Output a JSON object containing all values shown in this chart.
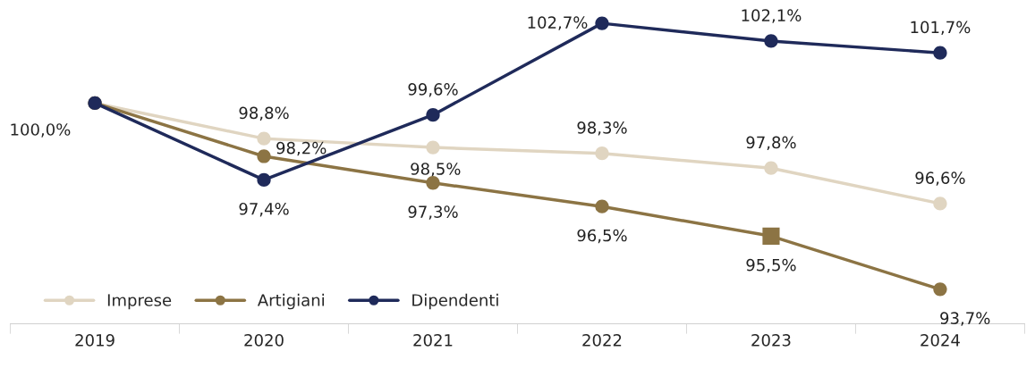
{
  "chart_data": {
    "type": "line",
    "categories": [
      "2019",
      "2020",
      "2021",
      "2022",
      "2023",
      "2024"
    ],
    "series": [
      {
        "name": "Imprese",
        "color": "#e0d5c1",
        "values": [
          100.0,
          98.8,
          98.5,
          98.3,
          97.8,
          96.6
        ],
        "value_labels": [
          null,
          "98,8%",
          "98,5%",
          "98,3%",
          "97,8%",
          "96,6%"
        ]
      },
      {
        "name": "Artigiani",
        "color": "#8c7444",
        "values": [
          100.0,
          98.2,
          97.3,
          96.5,
          95.5,
          93.7
        ],
        "value_labels": [
          null,
          "98,2%",
          "97,3%",
          "96,5%",
          "95,5%",
          "93,7%"
        ]
      },
      {
        "name": "Dipendenti",
        "color": "#1f2a5a",
        "values": [
          100.0,
          97.4,
          99.6,
          102.7,
          102.1,
          101.7
        ],
        "value_labels": [
          "100,0%",
          "97,4%",
          "99,6%",
          "102,7%",
          "102,1%",
          "101,7%"
        ]
      },
      {
        "type": "scatter",
        "color": "#8c7444",
        "marker": "square",
        "values": [
          null,
          null,
          null,
          null,
          95.5,
          null
        ]
      }
    ],
    "marker": "circle",
    "line_style": "solid",
    "legend": "bottom left",
    "grid": false
  }
}
